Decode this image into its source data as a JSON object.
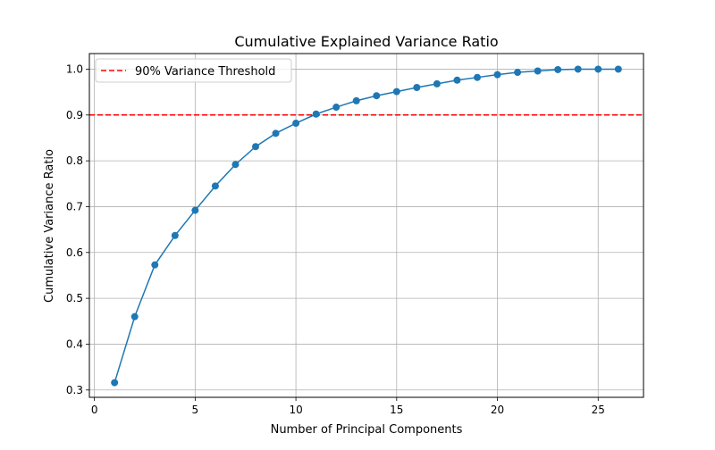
{
  "chart_data": {
    "type": "line",
    "title": "Cumulative Explained Variance Ratio",
    "xlabel": "Number of Principal Components",
    "ylabel": "Cumulative Variance Ratio",
    "xlim": [
      -0.25,
      27.25
    ],
    "ylim": [
      0.284,
      1.034
    ],
    "xticks": [
      0,
      5,
      10,
      15,
      20,
      25
    ],
    "yticks": [
      0.3,
      0.4,
      0.5,
      0.6,
      0.7,
      0.8,
      0.9,
      1.0
    ],
    "xtick_labels": [
      "0",
      "5",
      "10",
      "15",
      "20",
      "25"
    ],
    "ytick_labels": [
      "0.3",
      "0.4",
      "0.5",
      "0.6",
      "0.7",
      "0.8",
      "0.9",
      "1.0"
    ],
    "grid": true,
    "legend_position": "top-left",
    "x": [
      1,
      2,
      3,
      4,
      5,
      6,
      7,
      8,
      9,
      10,
      11,
      12,
      13,
      14,
      15,
      16,
      17,
      18,
      19,
      20,
      21,
      22,
      23,
      24,
      25,
      26
    ],
    "series": [
      {
        "color": "#1f77b4",
        "marker": "circle",
        "values": [
          0.316,
          0.46,
          0.573,
          0.637,
          0.692,
          0.745,
          0.792,
          0.831,
          0.86,
          0.882,
          0.902,
          0.917,
          0.931,
          0.942,
          0.951,
          0.96,
          0.968,
          0.976,
          0.982,
          0.988,
          0.993,
          0.996,
          0.999,
          1.0,
          1.0,
          1.0
        ]
      }
    ],
    "threshold": {
      "label": "90% Variance Threshold",
      "value": 0.9,
      "color": "#ff0000",
      "style": "dashed"
    }
  }
}
